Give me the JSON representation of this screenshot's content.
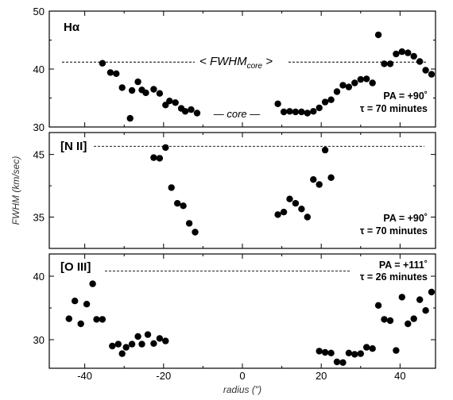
{
  "chart_data": {
    "type": "scatter",
    "xlabel": "radius (\")",
    "ylabel": "FWHM (km/sec)",
    "xlim": [
      -49,
      49
    ],
    "xticks": [
      -40,
      -20,
      0,
      20,
      40
    ],
    "grid": false,
    "panels": [
      {
        "label": "Hα",
        "pa_text": "PA = +90˚",
        "tau_text": "τ = 70 minutes",
        "ylim": [
          30,
          50
        ],
        "yticks": [
          30,
          40,
          50
        ],
        "reference_y": 41.2,
        "annotation_fwhm": "FWHM",
        "annotation_fwhm_sub": "core",
        "annotation_core": "core",
        "points": {
          "x": [
            -35.5,
            -33.5,
            -32,
            -30.5,
            -28.5,
            -28,
            -26.5,
            -25.5,
            -24.5,
            -22.5,
            -21,
            -19.5,
            -18.5,
            -17,
            -15.5,
            -14.5,
            -13,
            -11.5,
            9,
            10.5,
            12,
            13.5,
            15,
            16.5,
            18,
            19.5,
            21,
            22.5,
            24,
            25.5,
            27,
            28.5,
            30,
            31.5,
            33,
            34.5,
            36,
            37.5,
            39,
            40.5,
            42,
            43.5,
            45,
            46.5,
            48
          ],
          "y": [
            41.0,
            39.4,
            39.2,
            36.8,
            31.5,
            36.3,
            37.8,
            36.4,
            35.9,
            36.5,
            35.8,
            33.8,
            34.5,
            34.2,
            33.2,
            32.7,
            33.0,
            32.4,
            34.0,
            32.6,
            32.7,
            32.6,
            32.6,
            32.4,
            32.7,
            33.3,
            34.3,
            34.7,
            36.1,
            37.2,
            36.9,
            37.6,
            38.2,
            38.3,
            37.6,
            45.9,
            40.9,
            40.9,
            42.6,
            43.0,
            42.8,
            42.2,
            41.3,
            39.8,
            39.1
          ]
        }
      },
      {
        "label": "[N II]",
        "pa_text": "PA = +90˚",
        "tau_text": "τ = 70 minutes",
        "ylim": [
          30,
          48.5
        ],
        "yticks": [
          35,
          45
        ],
        "reference_y": 46.3,
        "points": {
          "x": [
            -22.5,
            -21,
            -19.5,
            -18,
            -16.5,
            -15,
            -13.5,
            -12,
            9,
            10.5,
            12,
            13.5,
            15,
            16.5,
            18,
            19.5,
            21,
            22.5
          ],
          "y": [
            44.5,
            44.4,
            46.1,
            39.7,
            37.2,
            36.8,
            34.0,
            32.6,
            35.4,
            35.8,
            37.9,
            37.2,
            36.3,
            35.0,
            41.0,
            40.2,
            45.7,
            41.3
          ]
        }
      },
      {
        "label": "[O III]",
        "pa_text": "PA = +111˚",
        "tau_text": "τ = 26 minutes",
        "ylim": [
          25.5,
          43.5
        ],
        "yticks": [
          30,
          40
        ],
        "reference_y": 40.8,
        "points": {
          "x": [
            -44,
            -42.5,
            -41,
            -39.5,
            -38,
            -37,
            -35.5,
            -33,
            -31.5,
            -30.5,
            -29.5,
            -28,
            -26.5,
            -25.5,
            -24,
            -22.5,
            -21,
            -19.5,
            19.5,
            21,
            22.5,
            24,
            25.5,
            27,
            28.5,
            30,
            31.5,
            33,
            34.5,
            36,
            37.5,
            39,
            40.5,
            42,
            43.5,
            45,
            46.5,
            48
          ],
          "y": [
            33.3,
            36.1,
            32.5,
            35.6,
            38.8,
            33.2,
            33.2,
            29.0,
            29.3,
            27.8,
            28.8,
            29.3,
            30.5,
            29.3,
            30.8,
            29.4,
            30.2,
            29.8,
            28.2,
            28.0,
            27.9,
            26.5,
            26.4,
            27.9,
            27.7,
            27.8,
            28.8,
            28.6,
            35.4,
            33.2,
            33.0,
            28.3,
            36.7,
            32.5,
            33.3,
            36.3,
            34.6,
            37.5
          ]
        }
      }
    ]
  }
}
